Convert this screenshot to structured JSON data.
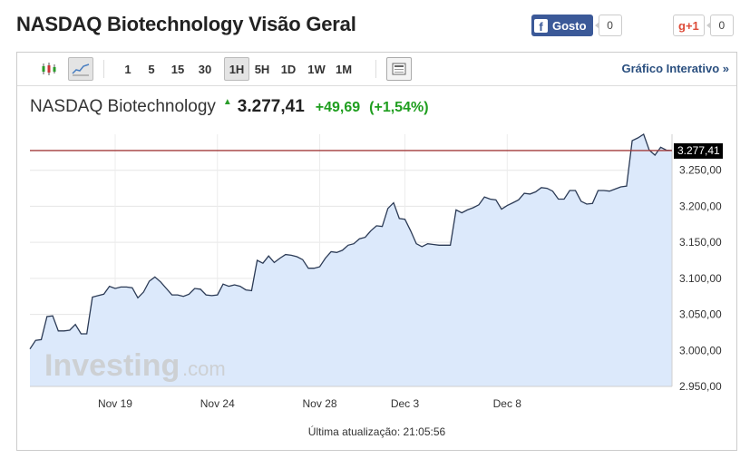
{
  "page": {
    "title": "NASDAQ Biotechnology Visão Geral"
  },
  "social": {
    "fb_label": "Gosto",
    "fb_count": "0",
    "gplus_label": "+1",
    "gplus_count": "0"
  },
  "toolbar": {
    "intervals": [
      "1",
      "5",
      "15",
      "30",
      "1H",
      "5H",
      "1D",
      "1W",
      "1M"
    ],
    "selected": "1H",
    "interactive_label": "Gráfico Interativo »"
  },
  "quote": {
    "name": "NASDAQ Biotechnology",
    "price": "3.277,41",
    "change": "+49,69",
    "change_pct": "(+1,54%)"
  },
  "watermark": {
    "main": "Investing",
    "suffix": ".com"
  },
  "updated": "Última atualização: 21:05:56",
  "colors": {
    "line": "#2b3a55",
    "fill": "#dce9fb",
    "last_line": "#a23b3b",
    "up": "#1f9e1f",
    "label_bg": "#000000"
  },
  "chart_data": {
    "type": "area",
    "xlabel": "",
    "ylabel": "",
    "ylim": [
      2950,
      3300
    ],
    "grid": true,
    "y_ticks": [
      2950,
      3000,
      3050,
      3100,
      3150,
      3200,
      3250
    ],
    "y_tick_labels": [
      "2.950,00",
      "3.000,00",
      "3.050,00",
      "3.100,00",
      "3.150,00",
      "3.200,00",
      "3.250,00"
    ],
    "x_ticks": [
      {
        "x": 15,
        "label": "Nov 19"
      },
      {
        "x": 33,
        "label": "Nov 24"
      },
      {
        "x": 51,
        "label": "Nov 28"
      },
      {
        "x": 66,
        "label": "Dec 3"
      },
      {
        "x": 84,
        "label": "Dec 8"
      }
    ],
    "last_value": 3277.41,
    "last_label": "3.277,41",
    "values": [
      3002,
      3014,
      3015,
      3047,
      3048,
      3027,
      3027,
      3028,
      3036,
      3023,
      3023,
      3074,
      3076,
      3078,
      3089,
      3086,
      3088,
      3088,
      3087,
      3073,
      3081,
      3096,
      3102,
      3095,
      3086,
      3077,
      3077,
      3075,
      3078,
      3086,
      3085,
      3077,
      3076,
      3077,
      3092,
      3089,
      3091,
      3089,
      3084,
      3083,
      3125,
      3121,
      3131,
      3122,
      3128,
      3133,
      3132,
      3130,
      3126,
      3114,
      3114,
      3116,
      3128,
      3137,
      3136,
      3139,
      3146,
      3148,
      3155,
      3157,
      3166,
      3173,
      3172,
      3197,
      3205,
      3183,
      3182,
      3166,
      3148,
      3144,
      3148,
      3147,
      3146,
      3146,
      3146,
      3195,
      3191,
      3195,
      3198,
      3202,
      3213,
      3210,
      3209,
      3196,
      3201,
      3205,
      3209,
      3218,
      3217,
      3220,
      3226,
      3225,
      3221,
      3210,
      3210,
      3222,
      3222,
      3207,
      3203,
      3204,
      3222,
      3222,
      3221,
      3224,
      3227,
      3228,
      3291,
      3295,
      3300,
      3278,
      3271,
      3282,
      3278,
      3277.41
    ]
  }
}
